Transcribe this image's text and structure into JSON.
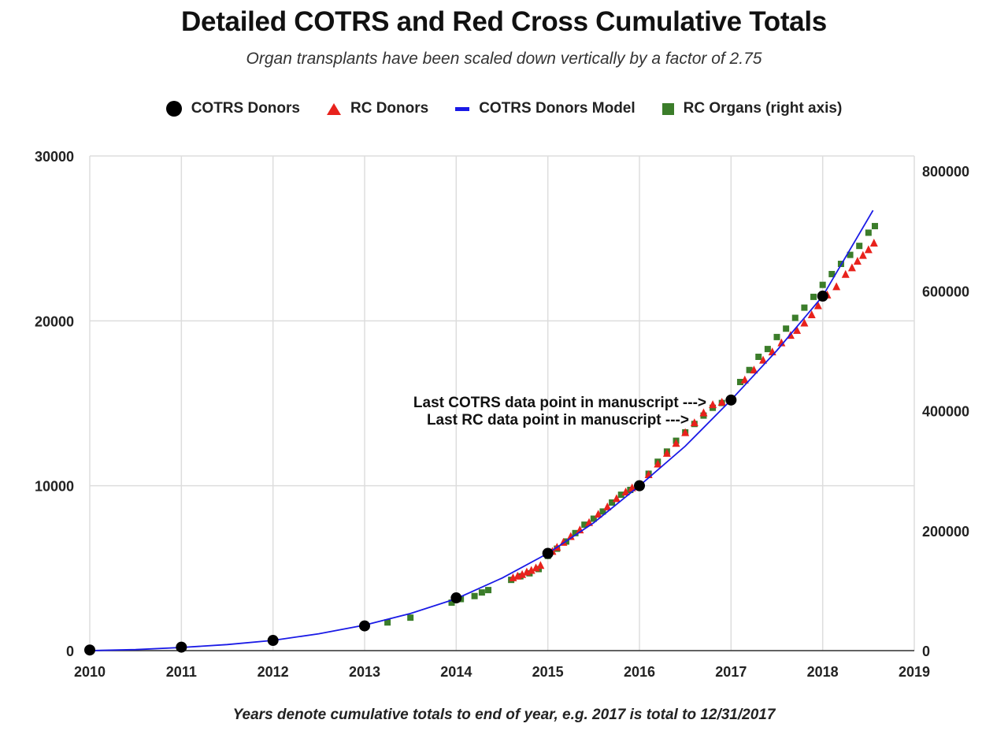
{
  "chart_data": {
    "type": "scatter",
    "title": "Detailed COTRS and Red Cross Cumulative Totals",
    "subtitle": "Organ transplants have been scaled down vertically by a factor of 2.75",
    "footer": "Years denote cumulative totals to end of year, e.g. 2017 is total to 12/31/2017",
    "x_ticks": [
      "2010",
      "2011",
      "2012",
      "2013",
      "2014",
      "2015",
      "2016",
      "2017",
      "2018",
      "2019"
    ],
    "xlim": [
      2010,
      2019
    ],
    "y_left_ticks": [
      "0",
      "10000",
      "20000",
      "30000"
    ],
    "ylim_left": [
      0,
      30000
    ],
    "y_right_ticks": [
      "0",
      "200000",
      "400000",
      "600000",
      "800000"
    ],
    "ylim_right": [
      0,
      825000
    ],
    "grid": true,
    "legend_position": "top",
    "legend": [
      {
        "name": "COTRS Donors",
        "marker": "circle",
        "color": "#000000"
      },
      {
        "name": "RC Donors",
        "marker": "triangle",
        "color": "#e8221c"
      },
      {
        "name": "COTRS Donors Model",
        "marker": "line",
        "color": "#1a1ae6"
      },
      {
        "name": "RC Organs (right axis)",
        "marker": "square",
        "color": "#3b7d2a"
      }
    ],
    "series": [
      {
        "name": "COTRS Donors",
        "axis": "left",
        "x": [
          2010,
          2011,
          2012,
          2013,
          2014,
          2015,
          2016,
          2017,
          2018
        ],
        "y": [
          37,
          210,
          620,
          1500,
          3200,
          5900,
          10000,
          15200,
          21500
        ]
      },
      {
        "name": "RC Donors",
        "axis": "left",
        "x": [
          2014.62,
          2014.67,
          2014.72,
          2014.77,
          2014.82,
          2014.87,
          2014.92,
          2015.05,
          2015.1,
          2015.17,
          2015.25,
          2015.35,
          2015.45,
          2015.55,
          2015.65,
          2015.75,
          2015.85,
          2015.92,
          2016.0,
          2016.1,
          2016.2,
          2016.3,
          2016.4,
          2016.5,
          2016.6,
          2016.7,
          2016.8,
          2016.9,
          2017.0,
          2017.15,
          2017.25,
          2017.35,
          2017.45,
          2017.55,
          2017.65,
          2017.72,
          2017.8,
          2017.88,
          2017.95,
          2018.05,
          2018.15,
          2018.25,
          2018.32,
          2018.38,
          2018.44,
          2018.5,
          2018.56
        ],
        "y": [
          4400,
          4500,
          4600,
          4750,
          4850,
          5000,
          5150,
          6000,
          6250,
          6550,
          6900,
          7300,
          7750,
          8250,
          8700,
          9200,
          9600,
          9850,
          10050,
          10650,
          11300,
          11950,
          12550,
          13200,
          13800,
          14400,
          14900,
          15050,
          15200,
          16400,
          17000,
          17600,
          18100,
          18650,
          19100,
          19400,
          19850,
          20350,
          20900,
          21550,
          22050,
          22800,
          23200,
          23600,
          23950,
          24300,
          24700
        ]
      },
      {
        "name": "COTRS Donors Model",
        "axis": "left",
        "x": [
          2010,
          2010.5,
          2011,
          2011.5,
          2012,
          2012.5,
          2013,
          2013.5,
          2014,
          2014.5,
          2015,
          2015.5,
          2016,
          2016.5,
          2017,
          2017.5,
          2018,
          2018.55
        ],
        "y": [
          0,
          60,
          190,
          370,
          620,
          1020,
          1550,
          2250,
          3150,
          4400,
          5900,
          7750,
          10000,
          12400,
          15200,
          18200,
          21500,
          26700
        ]
      },
      {
        "name": "RC Organs (right axis)",
        "axis": "right",
        "x": [
          2013.25,
          2013.5,
          2013.95,
          2014.05,
          2014.2,
          2014.28,
          2014.35,
          2014.6,
          2014.7,
          2014.8,
          2014.9,
          2015.0,
          2015.1,
          2015.2,
          2015.3,
          2015.4,
          2015.5,
          2015.6,
          2015.7,
          2015.8,
          2015.9,
          2016.0,
          2016.1,
          2016.2,
          2016.3,
          2016.4,
          2016.5,
          2016.6,
          2016.7,
          2016.8,
          2016.9,
          2017.0,
          2017.1,
          2017.2,
          2017.3,
          2017.4,
          2017.5,
          2017.6,
          2017.7,
          2017.8,
          2017.9,
          2018.0,
          2018.1,
          2018.2,
          2018.3,
          2018.4,
          2018.5,
          2018.57
        ],
        "y": [
          47000,
          55000,
          80000,
          86000,
          91000,
          97000,
          101000,
          118000,
          124000,
          129000,
          136000,
          158000,
          170000,
          182000,
          196000,
          210000,
          220000,
          232000,
          247000,
          260000,
          268000,
          275000,
          295000,
          315000,
          332000,
          350000,
          364000,
          378000,
          392000,
          405000,
          413000,
          420000,
          448000,
          468000,
          490000,
          503000,
          523000,
          537000,
          555000,
          572000,
          590000,
          610000,
          628000,
          645000,
          660000,
          675000,
          697000,
          708000
        ]
      }
    ],
    "annotations": [
      {
        "text": "Last COTRS data point in manuscript --->",
        "x": 2017,
        "y": 15200
      },
      {
        "text": "Last RC data point in manuscript --->",
        "x": 2017,
        "y": 14300
      }
    ]
  }
}
